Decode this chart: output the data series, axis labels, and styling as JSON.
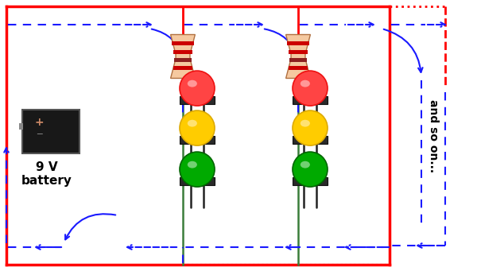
{
  "bg_color": "#ffffff",
  "blue": "#1a1aff",
  "red": "#ff0000",
  "green_wire": "#3a7d3a",
  "battery_label": "9 V\nbattery",
  "and_so_on_text": "and so on...",
  "figsize": [
    6.0,
    3.41
  ],
  "dpi": 100,
  "led_dome_colors": [
    "#ee1111",
    "#ddaa00",
    "#006600"
  ],
  "led_bright_colors": [
    "#ff4444",
    "#ffcc00",
    "#00aa00"
  ],
  "resistor_body_color": "#f5c9a0",
  "resistor_stripe_colors": [
    "#cc0000",
    "#cc0000",
    "#8B2020",
    "#cc0000"
  ],
  "battery_dark": "#181818",
  "battery_edge": "#555555"
}
